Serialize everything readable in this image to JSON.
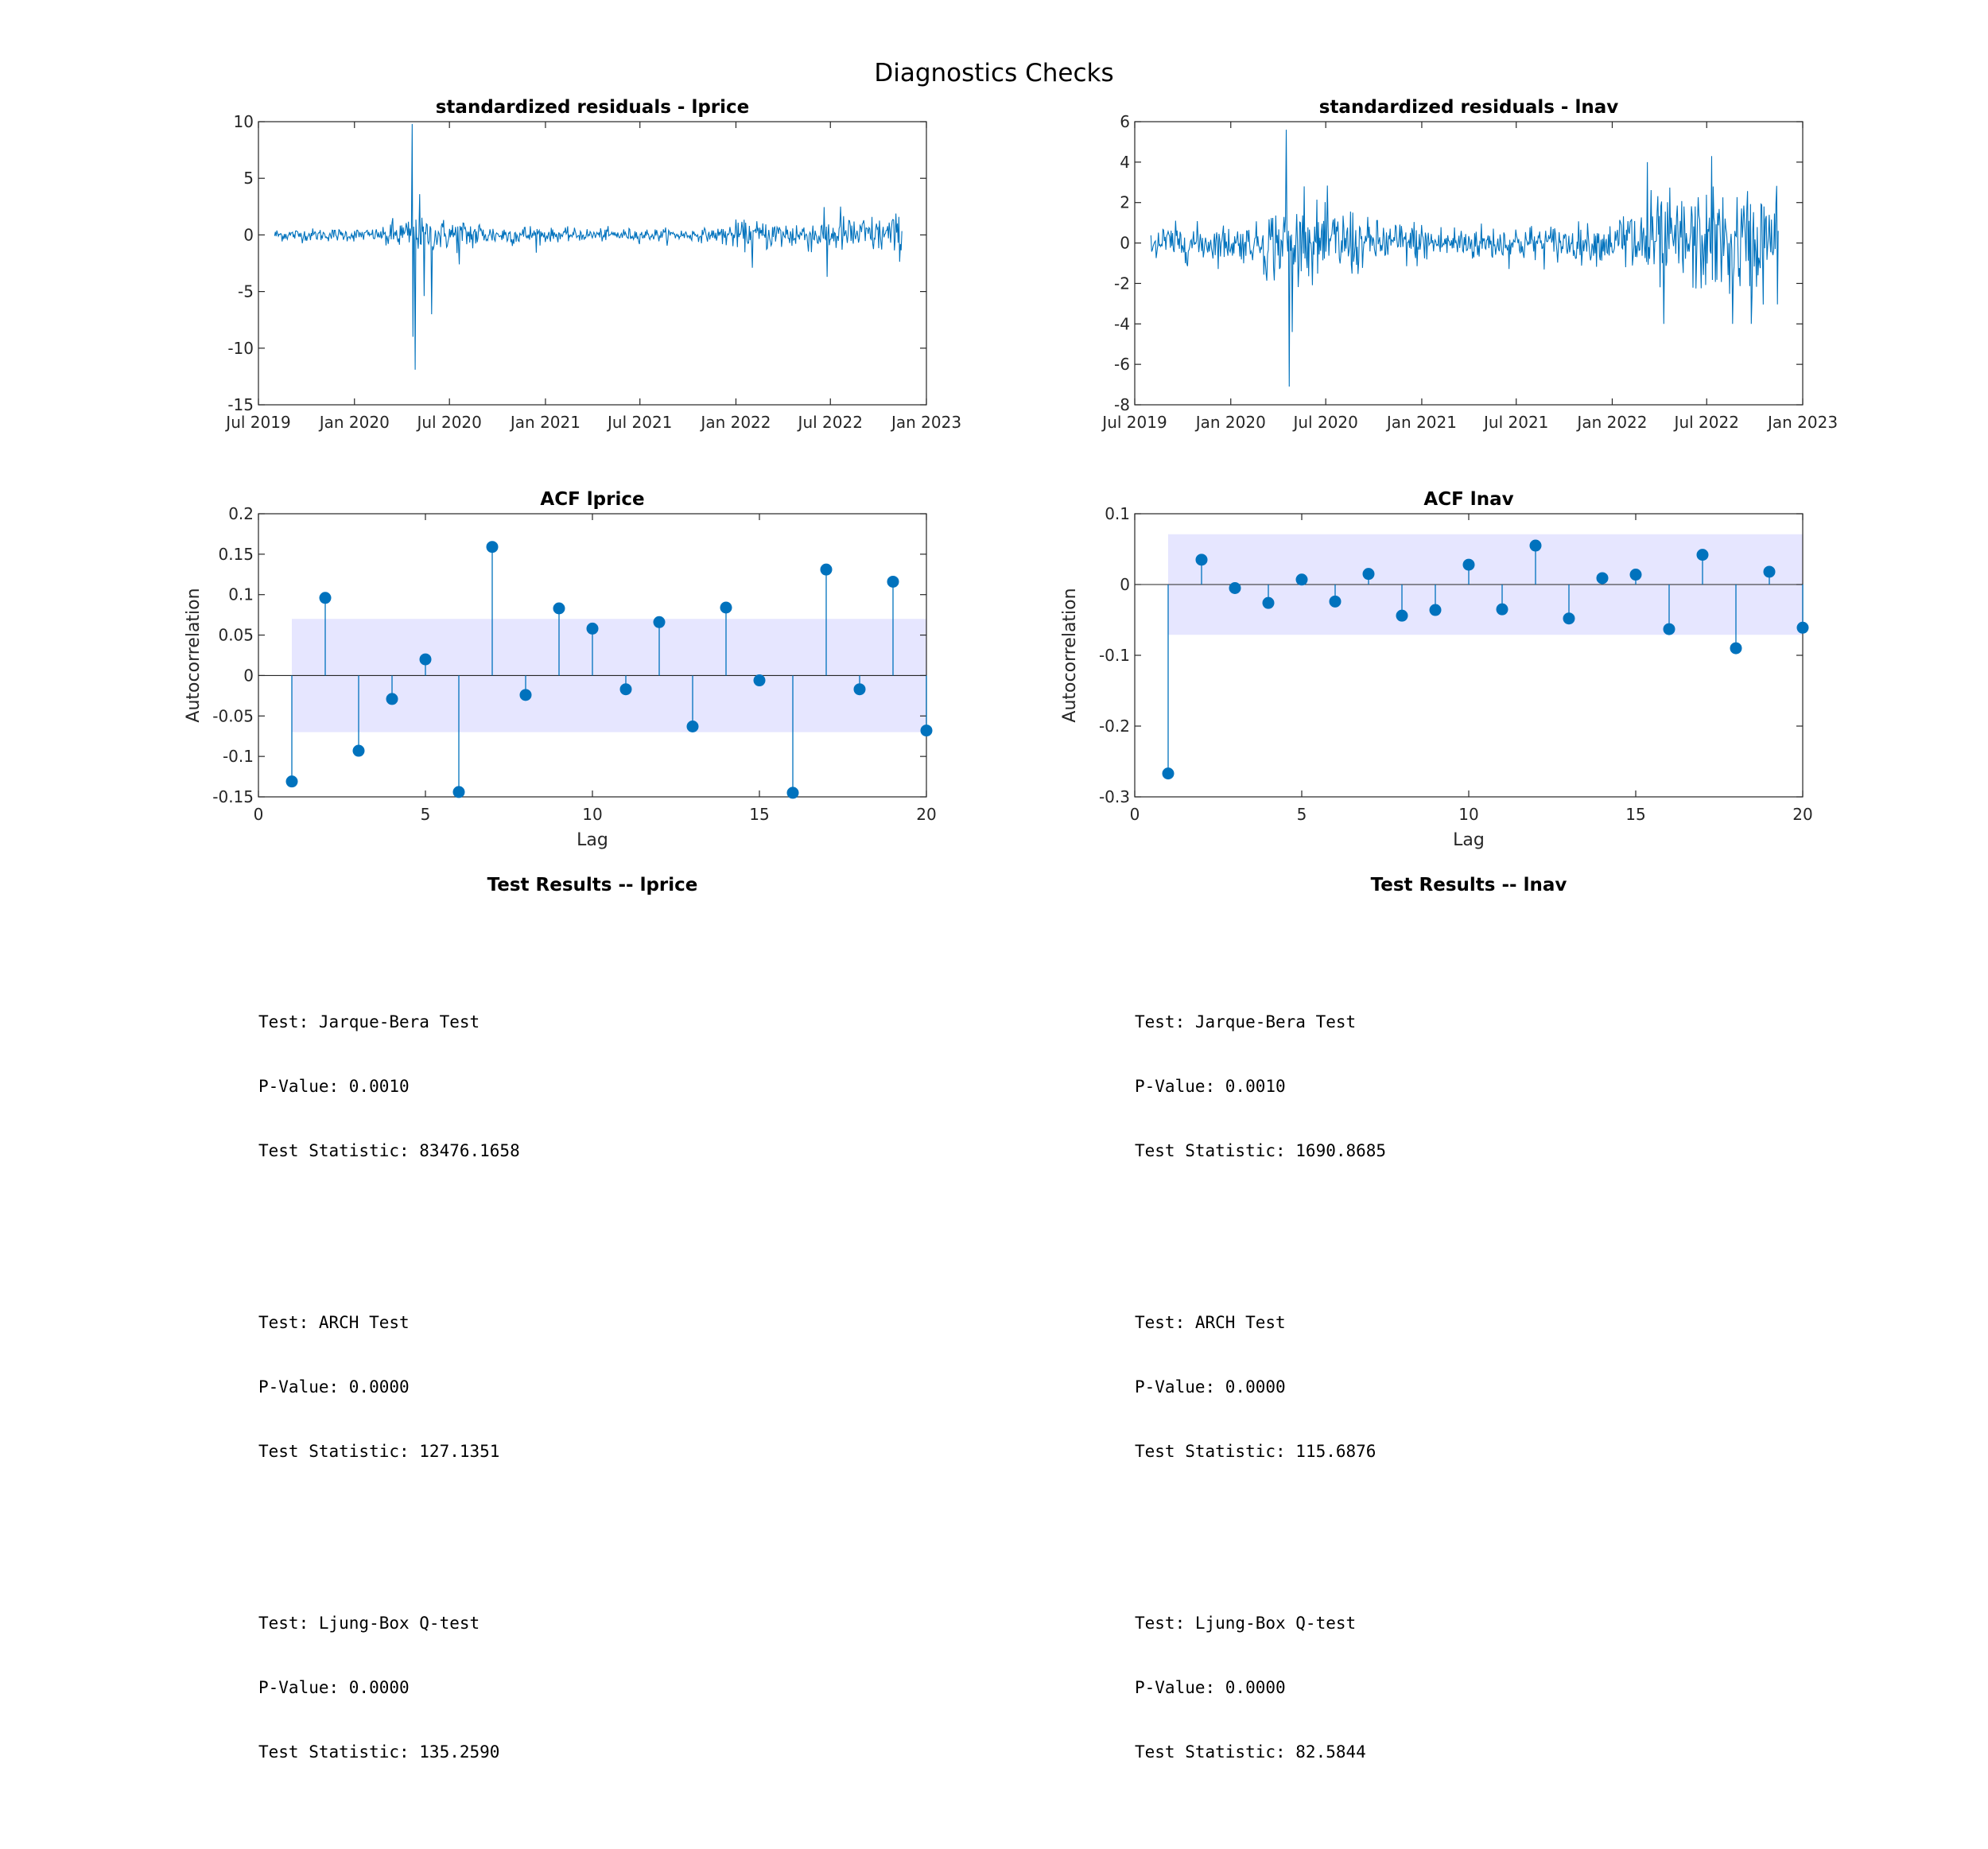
{
  "figure": {
    "title": "Diagnostics Checks"
  },
  "colors": {
    "line": "#0072BD",
    "band": "#E6E6FF",
    "axis": "#262626"
  },
  "chart_data": [
    {
      "type": "line",
      "id": "resid_lprice",
      "title": "standardized residuals - lprice",
      "xlabel": "",
      "ylabel": "",
      "ylim": [
        -15,
        10
      ],
      "yticks": [
        -15,
        -10,
        -5,
        0,
        5,
        10
      ],
      "xlim": [
        "2019-07-01",
        "2023-01-01"
      ],
      "xticks": [
        "Jul 2019",
        "Jan 2020",
        "Jul 2020",
        "Jan 2021",
        "Jul 2021",
        "Jan 2022",
        "Jul 2022",
        "Jan 2023"
      ],
      "x_start": "2019-08-01",
      "x_end": "2022-11-15",
      "n_points": 840,
      "anchors": [
        {
          "date": "2020-04-20",
          "value": 9.8
        },
        {
          "date": "2020-04-22",
          "value": -9.0
        },
        {
          "date": "2020-04-27",
          "value": -11.9
        },
        {
          "date": "2020-05-05",
          "value": 3.6
        },
        {
          "date": "2020-05-14",
          "value": -5.4
        },
        {
          "date": "2020-05-28",
          "value": -7.0
        },
        {
          "date": "2020-07-20",
          "value": -2.6
        },
        {
          "date": "2022-02-01",
          "value": -2.9
        },
        {
          "date": "2022-06-25",
          "value": -3.7
        },
        {
          "date": "2022-07-20",
          "value": 2.5
        }
      ],
      "grid": false
    },
    {
      "type": "line",
      "id": "resid_lnav",
      "title": "standardized residuals - lnav",
      "xlabel": "",
      "ylabel": "",
      "ylim": [
        -8,
        6
      ],
      "yticks": [
        -8,
        -6,
        -4,
        -2,
        0,
        2,
        4,
        6
      ],
      "xlim": [
        "2019-07-01",
        "2023-01-01"
      ],
      "xticks": [
        "Jul 2019",
        "Jan 2020",
        "Jul 2020",
        "Jan 2021",
        "Jul 2021",
        "Jan 2022",
        "Jul 2022",
        "Jan 2023"
      ],
      "x_start": "2019-08-01",
      "x_end": "2022-11-15",
      "n_points": 840,
      "anchors": [
        {
          "date": "2020-04-17",
          "value": 5.6
        },
        {
          "date": "2020-04-22",
          "value": -7.1
        },
        {
          "date": "2020-04-28",
          "value": -4.4
        },
        {
          "date": "2020-05-20",
          "value": 2.8
        },
        {
          "date": "2022-03-10",
          "value": 4.0
        },
        {
          "date": "2022-04-10",
          "value": -4.0
        },
        {
          "date": "2022-07-10",
          "value": 4.3
        },
        {
          "date": "2022-08-20",
          "value": -4.0
        },
        {
          "date": "2022-09-25",
          "value": -4.0
        }
      ],
      "grid": false
    },
    {
      "type": "stem",
      "id": "acf_lprice",
      "title": "ACF lprice",
      "xlabel": "Lag",
      "ylabel": "Autocorrelation",
      "xlim": [
        0,
        20
      ],
      "xticks": [
        0,
        5,
        10,
        15,
        20
      ],
      "ylim": [
        -0.15,
        0.2
      ],
      "yticks": [
        -0.15,
        -0.1,
        -0.05,
        0,
        0.05,
        0.1,
        0.15,
        0.2
      ],
      "lags": [
        1,
        2,
        3,
        4,
        5,
        6,
        7,
        8,
        9,
        10,
        11,
        12,
        13,
        14,
        15,
        16,
        17,
        18,
        19,
        20
      ],
      "values": [
        -0.131,
        0.096,
        -0.093,
        -0.029,
        0.02,
        -0.144,
        0.159,
        -0.024,
        0.083,
        0.058,
        -0.017,
        0.066,
        -0.063,
        0.084,
        -0.006,
        -0.145,
        0.131,
        -0.017,
        0.116,
        -0.068
      ],
      "confidence_band": [
        -0.07,
        0.07
      ],
      "grid": false
    },
    {
      "type": "stem",
      "id": "acf_lnav",
      "title": "ACF lnav",
      "xlabel": "Lag",
      "ylabel": "Autocorrelation",
      "xlim": [
        0,
        20
      ],
      "xticks": [
        0,
        5,
        10,
        15,
        20
      ],
      "ylim": [
        -0.3,
        0.1
      ],
      "yticks": [
        -0.3,
        -0.2,
        -0.1,
        0,
        0.1
      ],
      "lags": [
        1,
        2,
        3,
        4,
        5,
        6,
        7,
        8,
        9,
        10,
        11,
        12,
        13,
        14,
        15,
        16,
        17,
        18,
        19,
        20
      ],
      "values": [
        -0.267,
        0.035,
        -0.005,
        -0.026,
        0.007,
        -0.024,
        0.015,
        -0.044,
        -0.036,
        0.028,
        -0.035,
        0.055,
        -0.048,
        0.009,
        0.014,
        -0.063,
        0.042,
        -0.09,
        0.018,
        -0.061
      ],
      "confidence_band": [
        -0.071,
        0.071
      ],
      "grid": false
    }
  ],
  "tests": [
    {
      "title": "Test Results -- lprice",
      "results": [
        {
          "test": "Test: Jarque-Bera Test",
          "pvalue": "P-Value: 0.0010",
          "stat": "Test Statistic: 83476.1658"
        },
        {
          "test": "Test: ARCH Test",
          "pvalue": "P-Value: 0.0000",
          "stat": "Test Statistic: 127.1351"
        },
        {
          "test": "Test: Ljung-Box Q-test",
          "pvalue": "P-Value: 0.0000",
          "stat": "Test Statistic: 135.2590"
        }
      ]
    },
    {
      "title": "Test Results -- lnav",
      "results": [
        {
          "test": "Test: Jarque-Bera Test",
          "pvalue": "P-Value: 0.0010",
          "stat": "Test Statistic: 1690.8685"
        },
        {
          "test": "Test: ARCH Test",
          "pvalue": "P-Value: 0.0000",
          "stat": "Test Statistic: 115.6876"
        },
        {
          "test": "Test: Ljung-Box Q-test",
          "pvalue": "P-Value: 0.0000",
          "stat": "Test Statistic: 82.5844"
        }
      ]
    }
  ]
}
